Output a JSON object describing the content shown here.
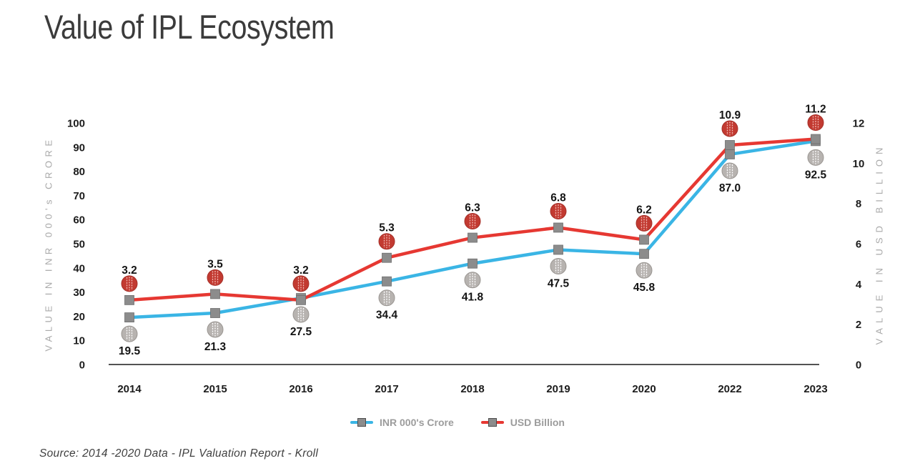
{
  "title": "Value of IPL Ecosystem",
  "source": "Source: 2014 -2020 Data - IPL Valuation Report - Kroll",
  "chart_data": {
    "type": "line",
    "title": "Value of IPL Ecosystem",
    "categories": [
      "2014",
      "2015",
      "2016",
      "2017",
      "2018",
      "2019",
      "2020",
      "2022",
      "2023"
    ],
    "series": [
      {
        "name": "INR 000's Crore",
        "axis": "left",
        "color": "#3ab5e5",
        "values": [
          19.5,
          21.3,
          27.5,
          34.4,
          41.8,
          47.5,
          45.8,
          87.0,
          92.5
        ],
        "label_position": "below",
        "point_icon": "cricket-ball-gray",
        "ball_fill": "#b7b3b0",
        "ball_stroke": "#9a9692",
        "ball_stitch": "#ffffff"
      },
      {
        "name": "USD Billion",
        "axis": "right",
        "color": "#e63832",
        "values": [
          3.2,
          3.5,
          3.2,
          5.3,
          6.3,
          6.8,
          6.2,
          10.9,
          11.2
        ],
        "label_position": "above",
        "point_icon": "cricket-ball-red",
        "ball_fill": "#c23a31",
        "ball_stroke": "#a52f28",
        "ball_stitch": "#f2bab5"
      }
    ],
    "left_axis": {
      "label": "VALUE IN INR 000's CRORE",
      "range": [
        0,
        100
      ],
      "ticks": [
        0,
        10,
        20,
        30,
        40,
        50,
        60,
        70,
        80,
        90,
        100
      ]
    },
    "right_axis": {
      "label": "VALUE IN USD BILLION",
      "range": [
        0,
        12
      ],
      "ticks": [
        0,
        2,
        4,
        6,
        8,
        10,
        12
      ]
    },
    "marker": {
      "shape": "square",
      "color": "#8c8c8c",
      "edge": "#6e6e6e"
    },
    "axis_line_color": "#1a1a1a",
    "grid": false,
    "legend_position": "bottom"
  }
}
